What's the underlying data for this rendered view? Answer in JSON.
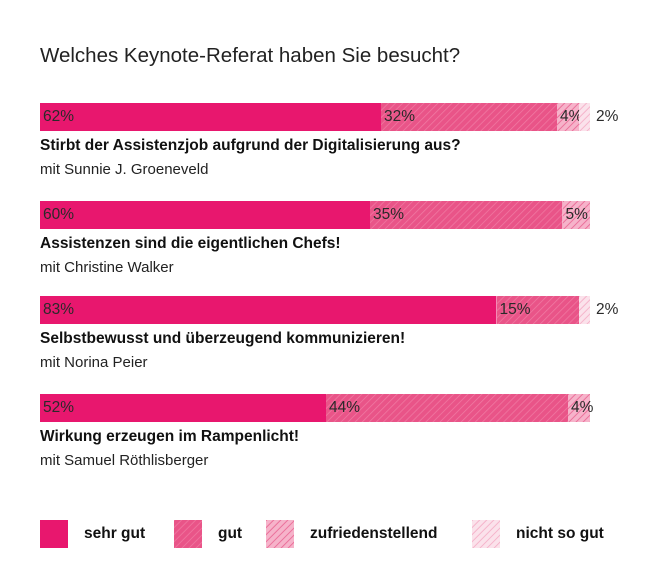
{
  "title": "Welches Keynote-Referat haben Sie besucht?",
  "chart_data": {
    "type": "bar",
    "orientation": "horizontal-stacked-100",
    "categories": [
      "Stirbt der Assistenzjob aufgrund der Digitalisierung aus?",
      "Assistenzen sind die eigentlichen Chefs!",
      "Selbstbewusst und überzeugend kommunizieren!",
      "Wirkung erzeugen im Rampenlicht!"
    ],
    "speakers": [
      "mit Sunnie J. Groeneveld",
      "mit Christine Walker",
      "mit Norina Peier",
      "mit Samuel Röthlisberger"
    ],
    "series": [
      {
        "name": "sehr gut",
        "values": [
          62,
          60,
          83,
          52
        ],
        "color": "#e8176e",
        "pattern": "solid"
      },
      {
        "name": "gut",
        "values": [
          32,
          35,
          15,
          44
        ],
        "color": "#ec5289",
        "pattern": "dense-hatch"
      },
      {
        "name": "zufriedenstellend",
        "values": [
          4,
          5,
          0,
          4
        ],
        "color": "#f28cb0",
        "pattern": "medium-hatch"
      },
      {
        "name": "nicht so gut",
        "values": [
          2,
          0,
          2,
          0
        ],
        "color": "#f7c3d6",
        "pattern": "light-hatch"
      }
    ],
    "labels": [
      [
        "62%",
        "32%",
        "4%",
        "2%"
      ],
      [
        "60%",
        "35%",
        "5%",
        ""
      ],
      [
        "83%",
        "15%",
        "",
        "2%"
      ],
      [
        "52%",
        "44%",
        "4%",
        ""
      ]
    ],
    "legend_position": "bottom",
    "xlim": [
      0,
      100
    ]
  },
  "legend": {
    "items": [
      "sehr gut",
      "gut",
      "zufriedenstellend",
      "nicht so gut"
    ]
  }
}
